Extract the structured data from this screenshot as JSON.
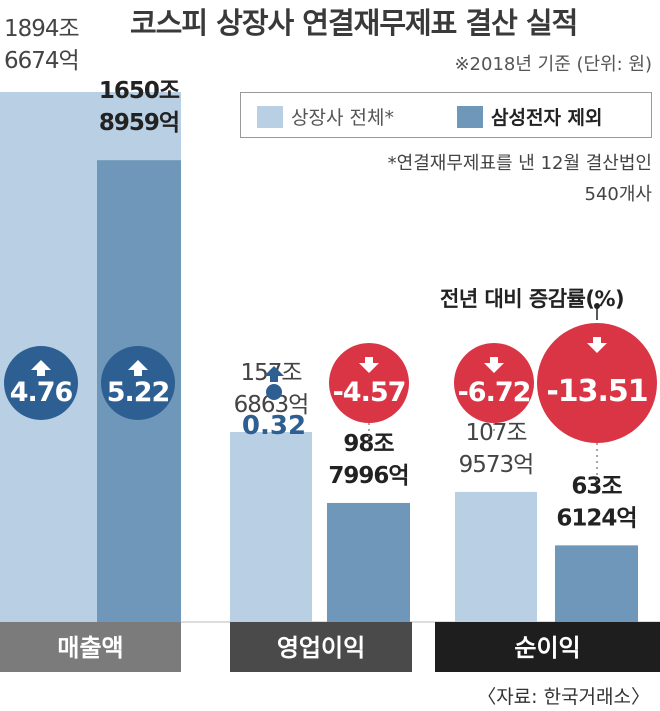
{
  "title": "코스피 상장사 연결재무제표 결산 실적",
  "subtitle": "※2018년 기준  (단위: 원)",
  "legend": {
    "all_label": "상장사 전체*",
    "excl_label": "삼성전자 제외"
  },
  "note": {
    "line1": "*연결재무제표를 낸 12월 결산법인",
    "line2": "540개사"
  },
  "growth_annotation": "전년 대비 증감률(%)",
  "source": "〈자료: 한국거래소〉",
  "colors": {
    "all": "#b9cfe3",
    "excl": "#6f97b9",
    "up": "#2d5f92",
    "down": "#d82a3b"
  },
  "chart_data": {
    "type": "bar",
    "unit": "원",
    "categories": [
      "매출액",
      "영업이익",
      "순이익"
    ],
    "series": [
      {
        "name": "상장사 전체*",
        "values_won": [
          1894667400000000,
          157686300000000,
          107957300000000
        ],
        "value_labels": [
          [
            "1894조",
            "6674억"
          ],
          [
            "157조",
            "6863억"
          ],
          [
            "107조",
            "9573억"
          ]
        ]
      },
      {
        "name": "삼성전자 제외",
        "values_won": [
          1650895900000000,
          98799600000000,
          63612400000000
        ],
        "value_labels": [
          [
            "1650조",
            "8959억"
          ],
          [
            "98조",
            "7996억"
          ],
          [
            "63조",
            "6124억"
          ]
        ]
      }
    ],
    "growth_pct": {
      "series": [
        {
          "name": "상장사 전체*",
          "values": [
            4.76,
            0.32,
            -6.72
          ],
          "labels": [
            "4.76",
            "0.32",
            "-6.72"
          ]
        },
        {
          "name": "삼성전자 제외",
          "values": [
            5.22,
            -4.57,
            -13.51
          ],
          "labels": [
            "5.22",
            "-4.57",
            "-13.51"
          ]
        }
      ]
    },
    "category_bar_colors": [
      "#7b7b7b",
      "#4a4a4a",
      "#1e1e1e"
    ]
  }
}
